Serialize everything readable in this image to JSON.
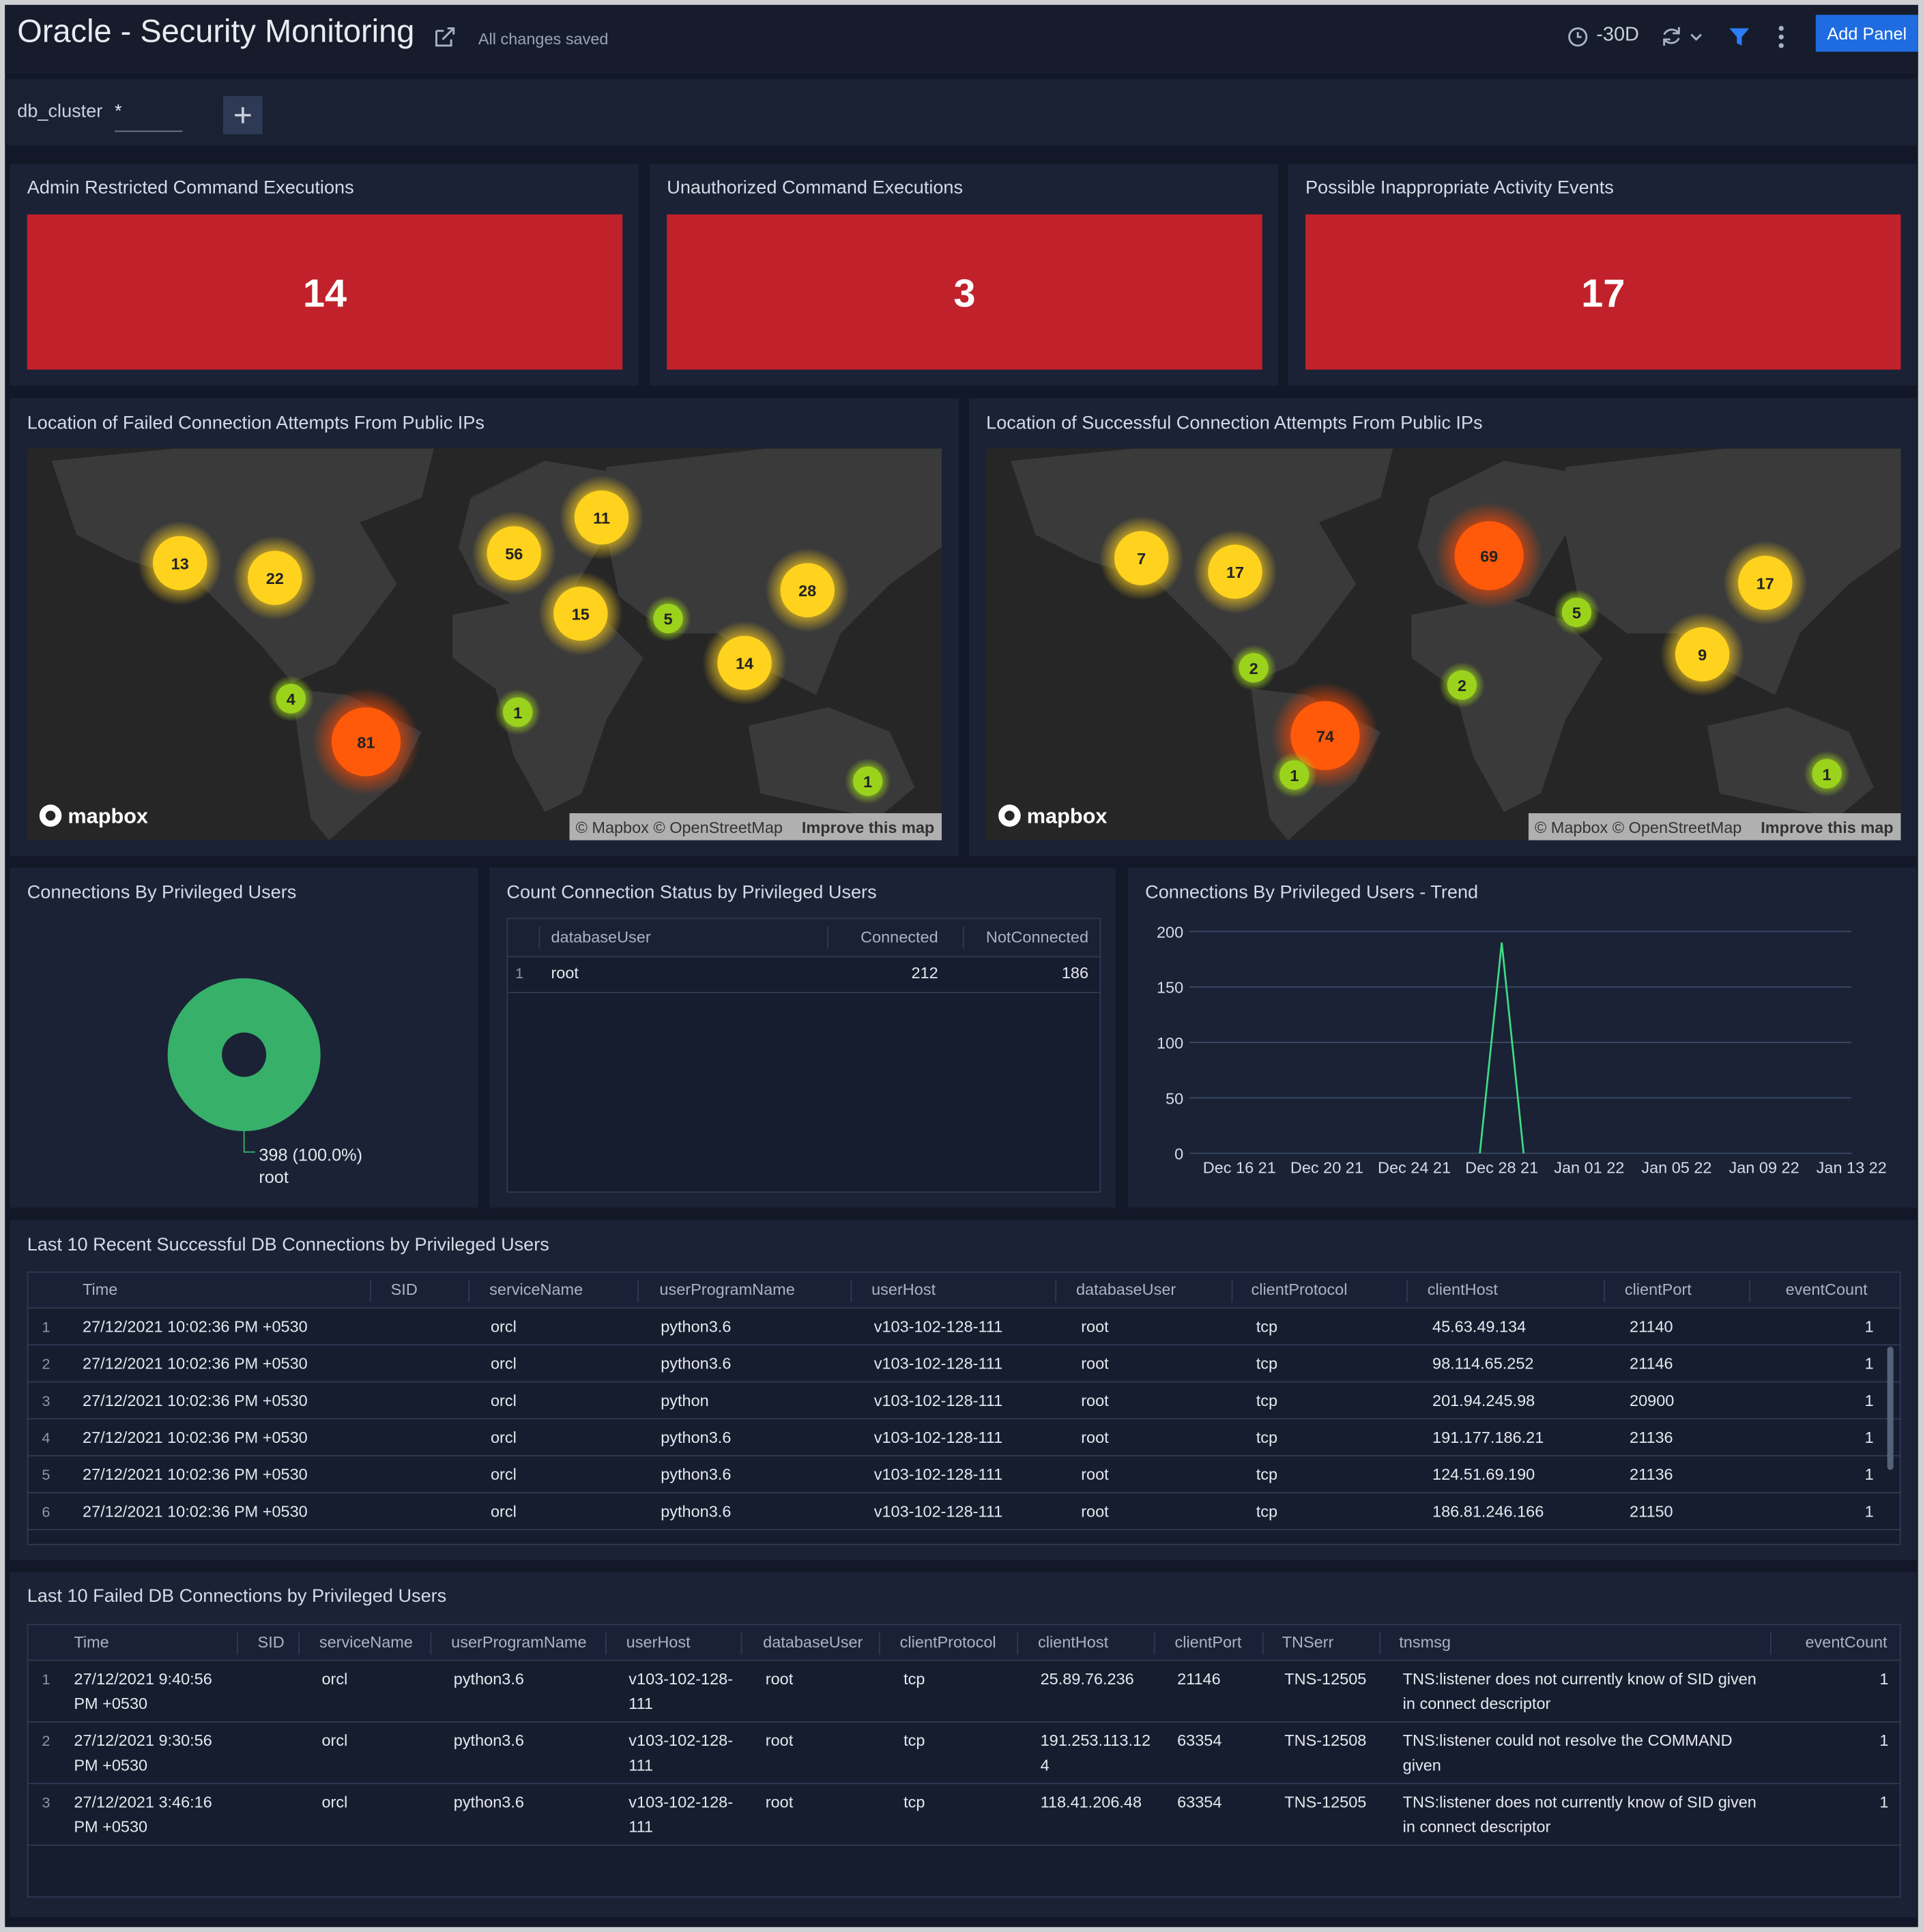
{
  "header": {
    "title": "Oracle - Security Monitoring",
    "save_status": "All changes saved",
    "time_range": "-30D",
    "add_panel": "Add Panel"
  },
  "filters": [
    {
      "label": "db_cluster",
      "value": "*"
    }
  ],
  "stat_panels": [
    {
      "title": "Admin Restricted Command Executions",
      "value": 14,
      "color": "#c1212a"
    },
    {
      "title": "Unauthorized Command Executions",
      "value": 3,
      "color": "#c1212a"
    },
    {
      "title": "Possible Inappropriate Activity Events",
      "value": 17,
      "color": "#c1212a"
    }
  ],
  "map_panels": [
    {
      "title": "Location of Failed Connection Attempts From Public IPs",
      "clusters": [
        13,
        22,
        56,
        11,
        15,
        5,
        28,
        14,
        4,
        81,
        1,
        1
      ],
      "logo": "mapbox",
      "attribution": "© Mapbox © OpenStreetMap",
      "improve_link": "Improve this map"
    },
    {
      "title": "Location of Successful Connection Attempts From Public IPs",
      "clusters": [
        7,
        17,
        69,
        5,
        17,
        9,
        2,
        2,
        74,
        1,
        1
      ],
      "logo": "mapbox",
      "attribution": "© Mapbox © OpenStreetMap",
      "improve_link": "Improve this map"
    }
  ],
  "pie_panel": {
    "title": "Connections By Privileged Users",
    "chart": {
      "type": "pie",
      "labels": [
        "root"
      ],
      "values": [
        398
      ],
      "value_labels": [
        "398 (100.0%)"
      ],
      "colors": [
        "#37b06a"
      ]
    }
  },
  "status_table": {
    "title": "Count Connection Status by Privileged Users",
    "columns": [
      "databaseUser",
      "Connected",
      "NotConnected"
    ],
    "rows": [
      [
        1,
        "root",
        212,
        186
      ]
    ]
  },
  "trend_panel": {
    "title": "Connections By Privileged Users - Trend",
    "chart": {
      "type": "line",
      "x": [
        "2021-12-27",
        "2021-12-28",
        "2021-12-29"
      ],
      "series": [
        {
          "color": "#3ddc84",
          "values": [
            0,
            190,
            0
          ]
        }
      ],
      "xlim": [
        "2021-12-14",
        "2022-01-13"
      ],
      "xticks": [
        {
          "value": "2021-12-16",
          "label": "Dec 16 21"
        },
        {
          "value": "2021-12-20",
          "label": "Dec 20 21"
        },
        {
          "value": "2021-12-24",
          "label": "Dec 24 21"
        },
        {
          "value": "2021-12-28",
          "label": "Dec 28 21"
        },
        {
          "value": "2022-01-01",
          "label": "Jan 01 22"
        },
        {
          "value": "2022-01-05",
          "label": "Jan 05 22"
        },
        {
          "value": "2022-01-09",
          "label": "Jan 09 22"
        },
        {
          "value": "2022-01-13",
          "label": "Jan 13 22"
        }
      ],
      "ylim": [
        0,
        200
      ],
      "yticks": [
        0,
        50,
        100,
        150,
        200
      ],
      "grid": true
    }
  },
  "success_table": {
    "title": "Last 10 Recent Successful DB Connections by Privileged Users",
    "columns": [
      "Time",
      "SID",
      "serviceName",
      "userProgramName",
      "userHost",
      "databaseUser",
      "clientProtocol",
      "clientHost",
      "clientPort",
      "eventCount"
    ],
    "rows": [
      [
        1,
        "27/12/2021 10:02:36 PM +0530",
        null,
        "orcl",
        "python3.6",
        "v103-102-128-111",
        "root",
        "tcp",
        "45.63.49.134",
        21140,
        1
      ],
      [
        2,
        "27/12/2021 10:02:36 PM +0530",
        null,
        "orcl",
        "python3.6",
        "v103-102-128-111",
        "root",
        "tcp",
        "98.114.65.252",
        21146,
        1
      ],
      [
        3,
        "27/12/2021 10:02:36 PM +0530",
        null,
        "orcl",
        "python",
        "v103-102-128-111",
        "root",
        "tcp",
        "201.94.245.98",
        20900,
        1
      ],
      [
        4,
        "27/12/2021 10:02:36 PM +0530",
        null,
        "orcl",
        "python3.6",
        "v103-102-128-111",
        "root",
        "tcp",
        "191.177.186.21",
        21136,
        1
      ],
      [
        5,
        "27/12/2021 10:02:36 PM +0530",
        null,
        "orcl",
        "python3.6",
        "v103-102-128-111",
        "root",
        "tcp",
        "124.51.69.190",
        21136,
        1
      ],
      [
        6,
        "27/12/2021 10:02:36 PM +0530",
        null,
        "orcl",
        "python3.6",
        "v103-102-128-111",
        "root",
        "tcp",
        "186.81.246.166",
        21150,
        1
      ]
    ]
  },
  "failed_table": {
    "title": "Last 10 Failed DB Connections by Privileged Users",
    "columns": [
      "Time",
      "SID",
      "serviceName",
      "userProgramName",
      "userHost",
      "databaseUser",
      "clientProtocol",
      "clientHost",
      "clientPort",
      "TNSerr",
      "tnsmsg",
      "eventCount"
    ],
    "rows": [
      [
        1,
        "27/12/2021 9:40:56 PM +0530",
        null,
        "orcl",
        "python3.6",
        "v103-102-128-111",
        "root",
        "tcp",
        "25.89.76.236",
        21146,
        "TNS-12505",
        "TNS:listener does not currently know of SID given in connect descriptor",
        1
      ],
      [
        2,
        "27/12/2021 9:30:56 PM +0530",
        null,
        "orcl",
        "python3.6",
        "v103-102-128-111",
        "root",
        "tcp",
        "191.253.113.124",
        63354,
        "TNS-12508",
        "TNS:listener could not resolve the COMMAND given",
        1
      ],
      [
        3,
        "27/12/2021 3:46:16 PM +0530",
        null,
        "orcl",
        "python3.6",
        "v103-102-128-111",
        "root",
        "tcp",
        "118.41.206.48",
        63354,
        "TNS-12505",
        "TNS:listener does not currently know of SID given in connect descriptor",
        1
      ]
    ]
  }
}
